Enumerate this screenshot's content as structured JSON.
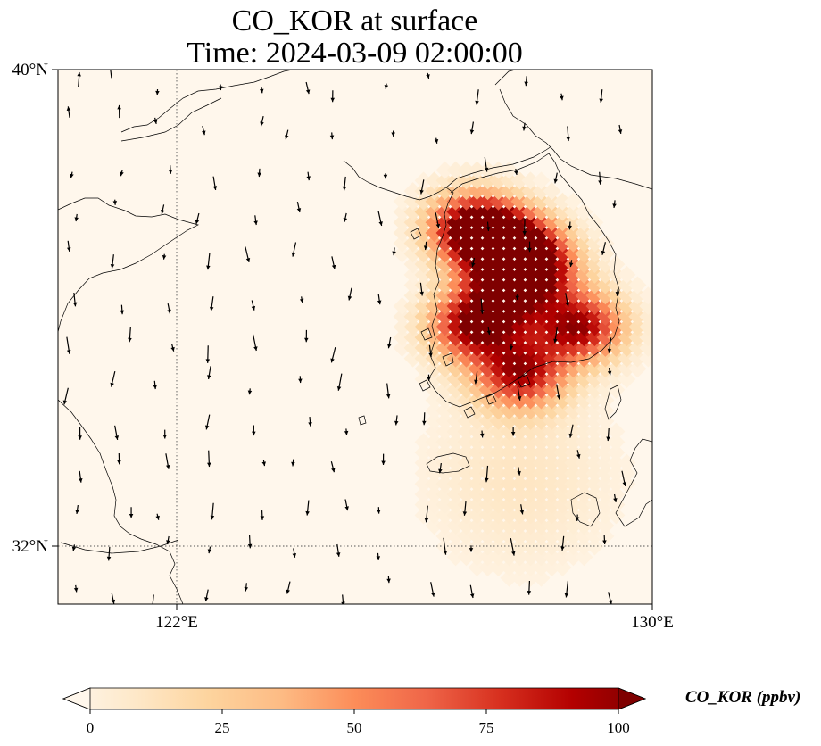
{
  "title": {
    "line1": "CO_KOR at surface",
    "line2": "Time: 2024-03-09 02:00:00"
  },
  "map": {
    "extent": {
      "lon": [
        120.0,
        130.0
      ],
      "lat": [
        31.0,
        40.2
      ]
    },
    "lat_ticks": [
      {
        "value": 40,
        "label": "40°N"
      },
      {
        "value": 32,
        "label": "32°N"
      }
    ],
    "lon_ticks": [
      {
        "value": 122,
        "label": "122°E"
      },
      {
        "value": 130,
        "label": "130°E"
      }
    ],
    "gridlines": "dotted"
  },
  "colorbar": {
    "label": "CO_KOR (ppbv)",
    "colormap": "OrRd",
    "ticks": [
      "0",
      "25",
      "50",
      "75",
      "100"
    ],
    "range": [
      0,
      100
    ],
    "extend": "both",
    "colors": [
      "#fff7ec",
      "#fee8c8",
      "#fdd49e",
      "#fdbb84",
      "#fc8d59",
      "#ef6548",
      "#d7301f",
      "#b30000",
      "#7f0000"
    ]
  },
  "chart_data": {
    "type": "heatmap",
    "variable": "CO_KOR",
    "units": "ppbv",
    "time": "2024-03-09 02:00:00",
    "level": "surface",
    "hotspots": [
      {
        "lon": 127.0,
        "lat": 37.5,
        "value": 100
      },
      {
        "lon": 127.6,
        "lat": 37.2,
        "value": 100
      },
      {
        "lon": 128.0,
        "lat": 36.8,
        "value": 90
      },
      {
        "lon": 128.8,
        "lat": 35.8,
        "value": 90
      },
      {
        "lon": 127.0,
        "lat": 35.8,
        "value": 85
      },
      {
        "lon": 127.8,
        "lat": 35.0,
        "value": 85
      },
      {
        "lon": 127.5,
        "lat": 36.3,
        "value": 60
      }
    ]
  }
}
